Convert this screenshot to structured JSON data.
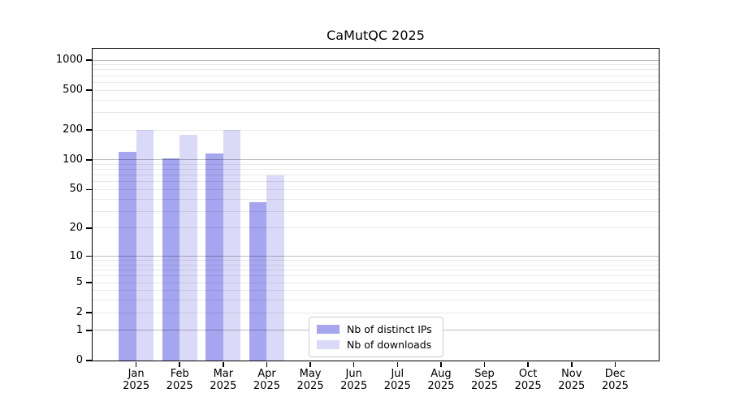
{
  "title": "CaMutQC 2025",
  "chart_data": {
    "type": "bar",
    "title": "CaMutQC 2025",
    "categories": [
      "Jan 2025",
      "Feb 2025",
      "Mar 2025",
      "Apr 2025",
      "May 2025",
      "Jun 2025",
      "Jul 2025",
      "Aug 2025",
      "Sep 2025",
      "Oct 2025",
      "Nov 2025",
      "Dec 2025"
    ],
    "series": [
      {
        "name": "Nb of distinct IPs",
        "color": "#a5a5f0",
        "values": [
          120,
          104,
          115,
          37,
          null,
          null,
          null,
          null,
          null,
          null,
          null,
          null
        ]
      },
      {
        "name": "Nb of downloads",
        "color": "#dadaf8",
        "values": [
          200,
          180,
          200,
          70,
          null,
          null,
          null,
          null,
          null,
          null,
          null,
          null
        ]
      }
    ],
    "xlabel": "",
    "ylabel": "",
    "yscale": "log1p",
    "ylim": [
      0,
      1300
    ],
    "yticks": [
      0,
      1,
      2,
      5,
      10,
      20,
      50,
      100,
      200,
      500,
      1000
    ],
    "major_gridlines": [
      1,
      10,
      100,
      1000
    ],
    "minor_gridlines": [
      2,
      3,
      4,
      5,
      6,
      7,
      8,
      9,
      20,
      30,
      40,
      50,
      60,
      70,
      80,
      90,
      200,
      300,
      400,
      500,
      600,
      700,
      800,
      900
    ],
    "grid": true,
    "legend_position": "lower center"
  },
  "legend": {
    "items": [
      {
        "label": "Nb of distinct IPs",
        "color": "#a5a5f0"
      },
      {
        "label": "Nb of downloads",
        "color": "#dadaf8"
      }
    ]
  }
}
